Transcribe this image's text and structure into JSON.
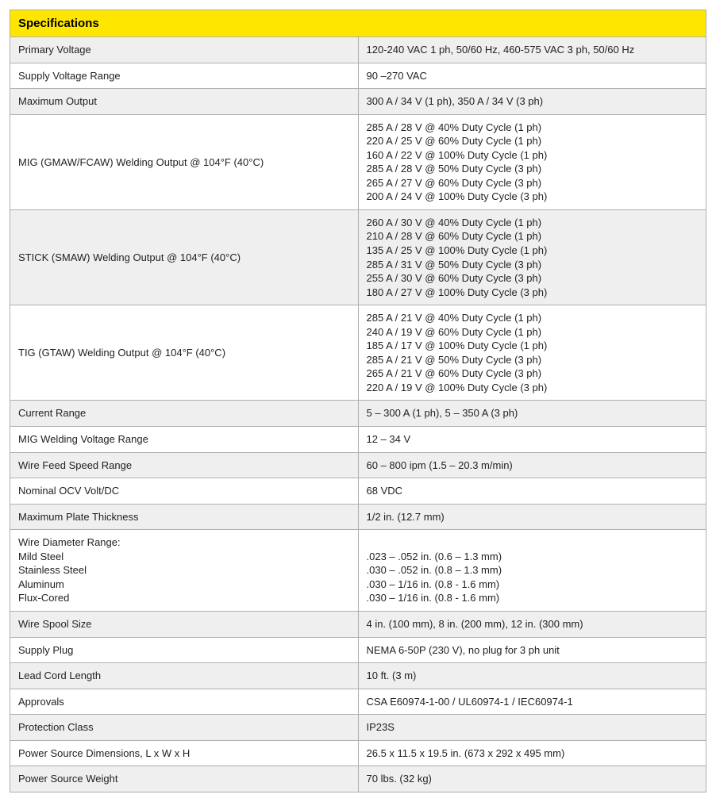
{
  "table": {
    "header": "Specifications",
    "header_bg": "#fee600",
    "header_text_color": "#000000",
    "border_color": "#b0b0b0",
    "row_even_bg": "#efefef",
    "row_odd_bg": "#ffffff",
    "font_size_header": 15,
    "font_size_cell": 13,
    "rows": [
      {
        "label": "Primary Voltage",
        "value": "120-240 VAC 1 ph, 50/60 Hz, 460-575 VAC 3 ph, 50/60 Hz"
      },
      {
        "label": "Supply Voltage Range",
        "value": "90 –270 VAC"
      },
      {
        "label": "Maximum Output",
        "value": "300 A / 34 V (1 ph), 350 A / 34 V (3 ph)"
      },
      {
        "label": "MIG (GMAW/FCAW) Welding Output @ 104°F (40°C)",
        "value": "285 A / 28 V @ 40% Duty Cycle (1 ph)\n220 A / 25 V @ 60% Duty Cycle (1 ph)\n160 A / 22 V @ 100% Duty Cycle (1 ph)\n285 A / 28 V @ 50% Duty Cycle (3 ph)\n265 A / 27 V @ 60% Duty Cycle (3 ph)\n200 A / 24 V @ 100% Duty Cycle (3 ph)"
      },
      {
        "label": "STICK (SMAW) Welding Output @ 104°F (40°C)",
        "value": "260 A / 30 V @ 40% Duty Cycle (1 ph)\n210 A / 28 V @ 60% Duty Cycle (1 ph)\n135 A / 25 V @ 100% Duty Cycle (1 ph)\n285 A / 31 V @ 50% Duty Cycle (3 ph)\n255 A / 30 V @ 60% Duty Cycle (3 ph)\n180 A / 27 V @ 100% Duty Cycle (3 ph)"
      },
      {
        "label": "TIG (GTAW) Welding Output @ 104°F (40°C)",
        "value": "285 A / 21 V @ 40% Duty Cycle (1 ph)\n240 A / 19 V @ 60% Duty Cycle (1 ph)\n185 A / 17 V @ 100% Duty Cycle (1 ph)\n285 A / 21 V @ 50% Duty Cycle (3 ph)\n265 A / 21 V @ 60% Duty Cycle (3 ph)\n220 A / 19 V @ 100% Duty Cycle (3 ph)"
      },
      {
        "label": "Current Range",
        "value": "5 – 300 A (1 ph), 5 – 350 A (3 ph)"
      },
      {
        "label": "MIG Welding Voltage Range",
        "value": "12 – 34 V"
      },
      {
        "label": "Wire Feed Speed Range",
        "value": "60 – 800 ipm (1.5 – 20.3 m/min)"
      },
      {
        "label": "Nominal OCV Volt/DC",
        "value": "68 VDC"
      },
      {
        "label": "Maximum Plate Thickness",
        "value": "1/2 in. (12.7 mm)"
      },
      {
        "label": "Wire Diameter Range:\nMild Steel\nStainless Steel\nAluminum\nFlux-Cored",
        "value": "\n.023 – .052 in. (0.6 – 1.3 mm)\n.030 – .052 in. (0.8 – 1.3 mm)\n.030 – 1/16 in. (0.8 - 1.6 mm)\n.030 – 1/16 in. (0.8 - 1.6 mm)"
      },
      {
        "label": "Wire Spool Size",
        "value": "4 in. (100 mm), 8 in. (200 mm), 12 in. (300 mm)"
      },
      {
        "label": "Supply Plug",
        "value": "NEMA 6-50P (230 V), no plug for 3 ph unit"
      },
      {
        "label": "Lead Cord Length",
        "value": "10 ft. (3 m)"
      },
      {
        "label": "Approvals",
        "value": "CSA E60974-1-00 / UL60974-1 / IEC60974-1"
      },
      {
        "label": "Protection Class",
        "value": "IP23S"
      },
      {
        "label": "Power Source Dimensions, L x W x H",
        "value": "26.5 x 11.5 x 19.5 in. (673 x 292 x 495 mm)"
      },
      {
        "label": "Power Source Weight",
        "value": "70 lbs. (32 kg)"
      }
    ]
  }
}
